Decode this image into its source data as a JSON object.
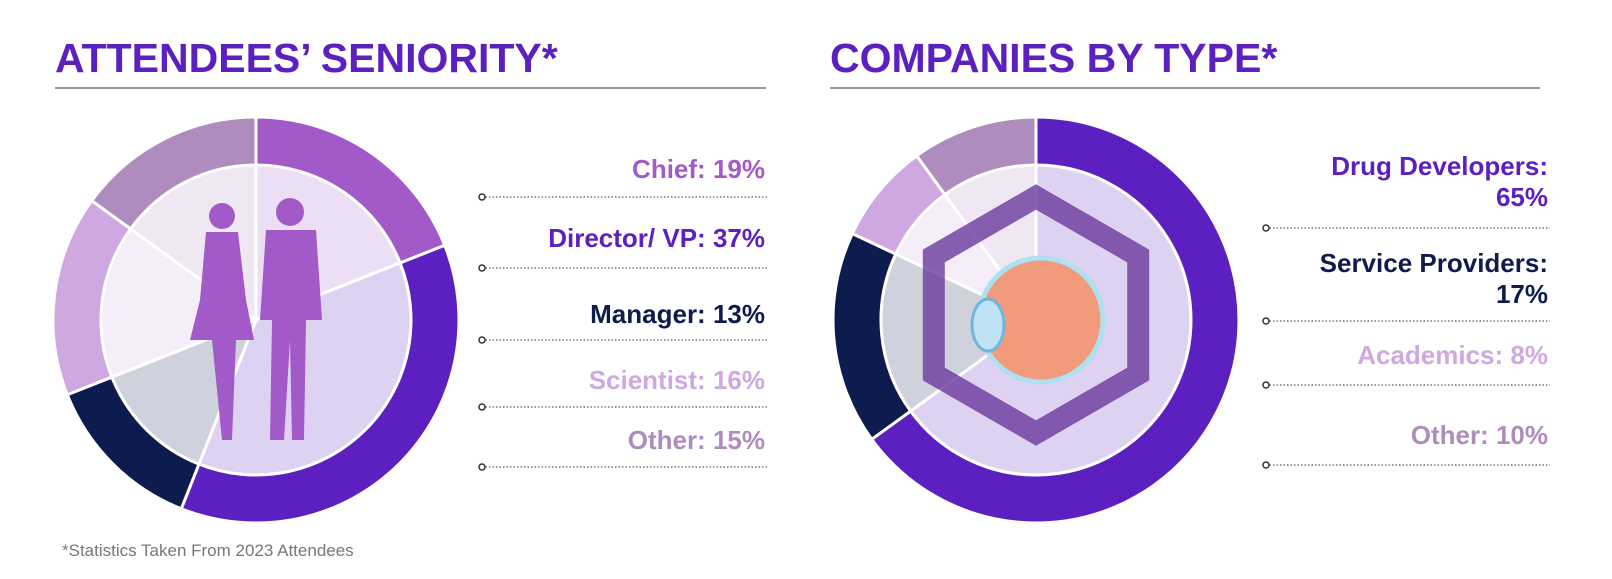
{
  "chart_data": [
    {
      "type": "donut",
      "title": "ATTENDEES’ SENIORITY*",
      "categories": [
        "Chief:",
        "Director/ VP:",
        "Manager:",
        "Scientist:",
        "Other:"
      ],
      "values": [
        19,
        37,
        13,
        16,
        15
      ],
      "value_labels": [
        "19%",
        "37%",
        "13%",
        "16%",
        "15%"
      ],
      "colors": [
        "#a25ac9",
        "#5b20bf",
        "#0e1b4e",
        "#cfa8e1",
        "#ae8cbd"
      ]
    },
    {
      "type": "donut",
      "title": "COMPANIES BY TYPE*",
      "categories": [
        "Drug Developers:",
        "Service Providers:",
        "Academics:",
        "Other:"
      ],
      "values": [
        65,
        17,
        8,
        10
      ],
      "value_labels": [
        "65%",
        "17%",
        "8%",
        "10%"
      ],
      "colors": [
        "#5b20bf",
        "#0e1b4e",
        "#cfa8e1",
        "#ae8cbd"
      ]
    }
  ],
  "footnote": "*Statistics Taken From 2023 Attendees"
}
